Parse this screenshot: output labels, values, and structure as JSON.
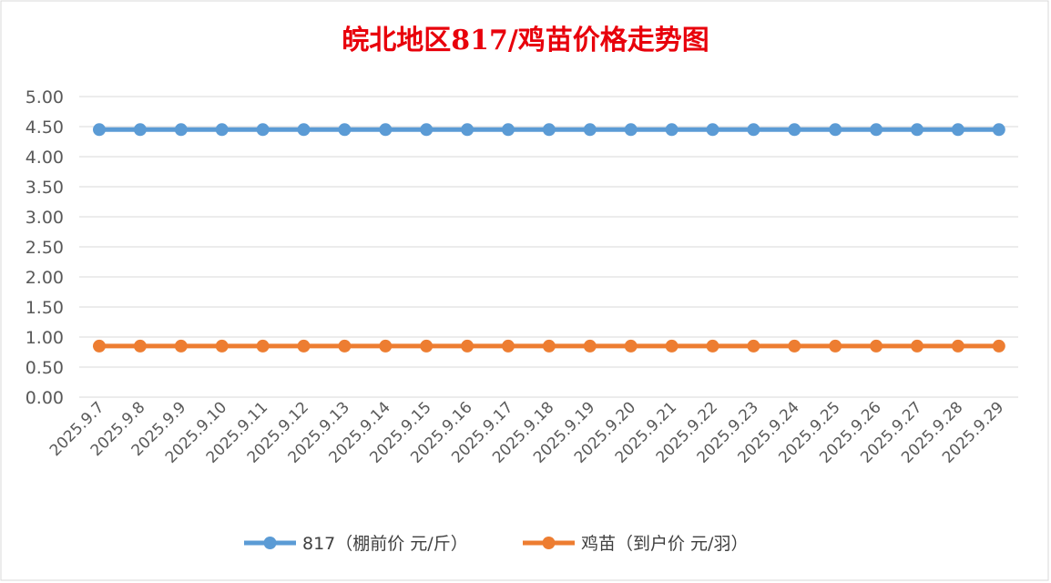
{
  "chart_data": {
    "type": "line",
    "title": "皖北地区817/鸡苗价格走势图",
    "xlabel": "",
    "ylabel": "",
    "ylim": [
      0,
      5
    ],
    "yticks": [
      "0.00",
      "0.50",
      "1.00",
      "1.50",
      "2.00",
      "2.50",
      "3.00",
      "3.50",
      "4.00",
      "4.50",
      "5.00"
    ],
    "grid": true,
    "legend_position": "bottom",
    "categories": [
      "2025.9.7",
      "2025.9.8",
      "2025.9.9",
      "2025.9.10",
      "2025.9.11",
      "2025.9.12",
      "2025.9.13",
      "2025.9.14",
      "2025.9.15",
      "2025.9.16",
      "2025.9.17",
      "2025.9.18",
      "2025.9.19",
      "2025.9.20",
      "2025.9.21",
      "2025.9.22",
      "2025.9.23",
      "2025.9.24",
      "2025.9.25",
      "2025.9.26",
      "2025.9.27",
      "2025.9.28",
      "2025.9.29"
    ],
    "series": [
      {
        "name": "817（棚前价 元/斤）",
        "color": "#5b9bd5",
        "values": [
          4.45,
          4.45,
          4.45,
          4.45,
          4.45,
          4.45,
          4.45,
          4.45,
          4.45,
          4.45,
          4.45,
          4.45,
          4.45,
          4.45,
          4.45,
          4.45,
          4.45,
          4.45,
          4.45,
          4.45,
          4.45,
          4.45,
          4.45
        ]
      },
      {
        "name": "鸡苗（到户价 元/羽）",
        "color": "#ed7d31",
        "values": [
          0.85,
          0.85,
          0.85,
          0.85,
          0.85,
          0.85,
          0.85,
          0.85,
          0.85,
          0.85,
          0.85,
          0.85,
          0.85,
          0.85,
          0.85,
          0.85,
          0.85,
          0.85,
          0.85,
          0.85,
          0.85,
          0.85,
          0.85
        ]
      }
    ]
  }
}
